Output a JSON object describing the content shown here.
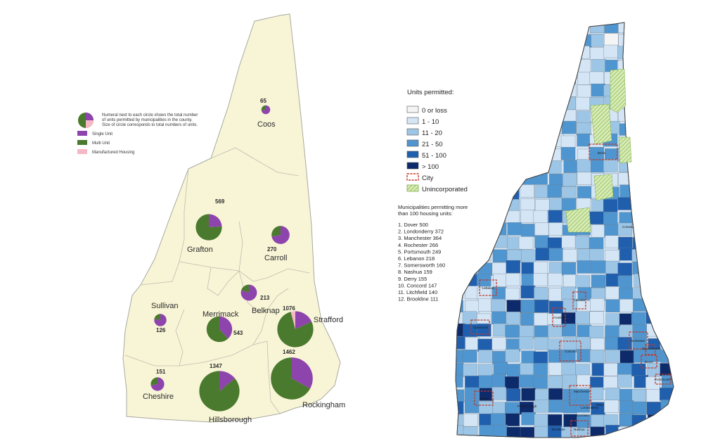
{
  "colors": {
    "single_unit": "#8e44ad",
    "multi_unit": "#4a7a2e",
    "manufactured": "#f6b8c6",
    "state_fill": "#f8f5d6",
    "bins": [
      "#f4f4f4",
      "#d4e5f5",
      "#9dc6e6",
      "#4f95cf",
      "#1f5fae",
      "#0d2a6b"
    ],
    "city_outline": "#c0392b",
    "unincorporated": "#a8cf6a"
  },
  "left_map": {
    "legend": {
      "note": "Numeral next to each circle shows the total number of units permitted by municipalities in the county. Size of circle corresponds to total numbers of units.",
      "items": [
        "Single Unit",
        "Multi Unit",
        "Manufactured Housing"
      ]
    },
    "counties": [
      {
        "name": "Coos",
        "total": "65",
        "single": 0.72,
        "multi": 0.28,
        "manufactured": 0.0
      },
      {
        "name": "Grafton",
        "total": "569",
        "single": 0.24,
        "multi": 0.76,
        "manufactured": 0.0
      },
      {
        "name": "Carroll",
        "total": "270",
        "single": 0.72,
        "multi": 0.28,
        "manufactured": 0.0
      },
      {
        "name": "Sullivan",
        "total": "126",
        "single": 0.78,
        "multi": 0.22,
        "manufactured": 0.0
      },
      {
        "name": "Merrimack",
        "total": "543",
        "single": 0.38,
        "multi": 0.62,
        "manufactured": 0.0
      },
      {
        "name": "Belknap",
        "total": "213",
        "single": 0.8,
        "multi": 0.2,
        "manufactured": 0.0
      },
      {
        "name": "Strafford",
        "total": "1076",
        "single": 0.18,
        "multi": 0.78,
        "manufactured": 0.04
      },
      {
        "name": "Cheshire",
        "total": "151",
        "single": 0.72,
        "multi": 0.28,
        "manufactured": 0.0
      },
      {
        "name": "Hillsborough",
        "total": "1347",
        "single": 0.14,
        "multi": 0.86,
        "manufactured": 0.0
      },
      {
        "name": "Rockingham",
        "total": "1462",
        "single": 0.33,
        "multi": 0.67,
        "manufactured": 0.0
      }
    ]
  },
  "right_map": {
    "legend_title": "Units permitted:",
    "bins": [
      "0 or loss",
      "1 - 10",
      "11 - 20",
      "21 - 50",
      "51 - 100",
      "> 100"
    ],
    "city_label": "City",
    "unincorporated_label": "Unincorporated",
    "list_title_1": "Municipalities permitting more",
    "list_title_2": "than 100 housing units:",
    "top_municipalities": [
      "1. Dover   500",
      "2. Londonderry   372",
      "3. Manchester   364",
      "4. Rochester   266",
      "5. Portsmouth   249",
      "6. Lebanon   218",
      "7. Somersworth   160",
      "8. Nashua   159",
      "9. Derry   155",
      "10. Concord   147",
      "11. Litchfield   140",
      "12. Brookline   111"
    ],
    "map_labels": [
      "Berlin",
      "Conway",
      "Lebanon",
      "Laconia",
      "Claremont",
      "Franklin",
      "Concord",
      "Rochester",
      "Somersworth",
      "Dover",
      "Portsmouth",
      "Keene",
      "Manchester",
      "Derry",
      "Londonderry",
      "Peterborough",
      "Litchfield",
      "Brookline",
      "Nashua"
    ]
  }
}
